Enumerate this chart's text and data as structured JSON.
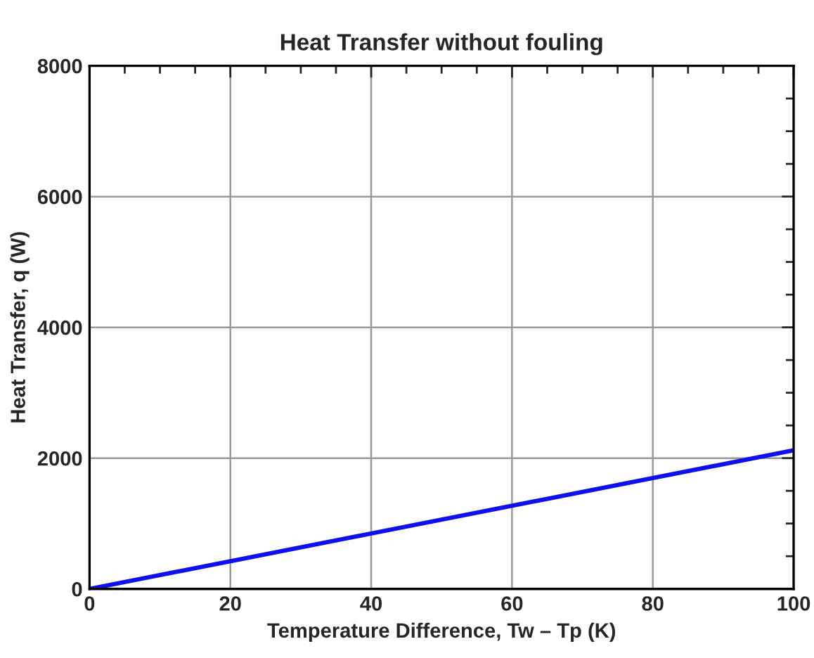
{
  "chart_data": {
    "type": "line",
    "title": "Heat Transfer without fouling",
    "xlabel": "Temperature Difference, Tw – Tp (K)",
    "ylabel": "Heat Transfer, q (W)",
    "series": [
      {
        "color": "#1010ee",
        "x": [
          0,
          100
        ],
        "values": [
          0,
          2120
        ]
      }
    ],
    "xlim": [
      0,
      100
    ],
    "ylim": [
      0,
      8000
    ],
    "xticks": [
      0,
      {
        "value": 5,
        "label": null
      },
      {
        "value": 10,
        "label": null
      },
      {
        "value": 15,
        "label": null
      },
      20,
      {
        "value": 25,
        "label": null
      },
      {
        "value": 30,
        "label": null
      },
      {
        "value": 35,
        "label": null
      },
      40,
      {
        "value": 45,
        "label": null
      },
      {
        "value": 50,
        "label": null
      },
      {
        "value": 55,
        "label": null
      },
      60,
      {
        "value": 65,
        "label": null
      },
      {
        "value": 70,
        "label": null
      },
      {
        "value": 75,
        "label": null
      },
      80,
      {
        "value": 85,
        "label": null
      },
      {
        "value": 90,
        "label": null
      },
      {
        "value": 95,
        "label": null
      },
      100
    ],
    "yticks": [
      0,
      {
        "value": 500,
        "label": null
      },
      {
        "value": 1000,
        "label": null
      },
      {
        "value": 1500,
        "label": null
      },
      2000,
      {
        "value": 2500,
        "label": null
      },
      {
        "value": 3000,
        "label": null
      },
      {
        "value": 3500,
        "label": null
      },
      4000,
      {
        "value": 4500,
        "label": null
      },
      {
        "value": 5000,
        "label": null
      },
      {
        "value": 5500,
        "label": null
      },
      6000,
      {
        "value": 6500,
        "label": null
      },
      {
        "value": 7000,
        "label": null
      },
      {
        "value": 7500,
        "label": null
      },
      8000
    ],
    "grid": true,
    "legend": false,
    "marker": "none",
    "line_style": "solid"
  }
}
